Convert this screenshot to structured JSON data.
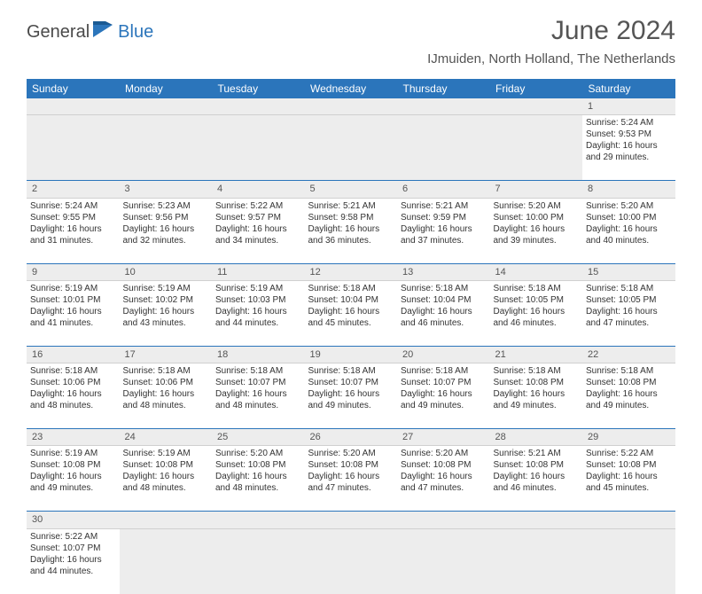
{
  "brand": {
    "part1": "General",
    "part2": "Blue"
  },
  "title": "June 2024",
  "location": "IJmuiden, North Holland, The Netherlands",
  "colors": {
    "header_bg": "#2b75bb",
    "header_text": "#ffffff",
    "daynum_bg": "#ededed",
    "border": "#2b75bb",
    "text": "#333333",
    "brand_gray": "#4a4a4a",
    "brand_blue": "#2b75bb"
  },
  "fonts": {
    "title_size": 30,
    "location_size": 15,
    "header_size": 12,
    "cell_size": 10
  },
  "day_headers": [
    "Sunday",
    "Monday",
    "Tuesday",
    "Wednesday",
    "Thursday",
    "Friday",
    "Saturday"
  ],
  "weeks": [
    [
      null,
      null,
      null,
      null,
      null,
      null,
      {
        "n": "1",
        "sr": "5:24 AM",
        "ss": "9:53 PM",
        "dl": "16 hours and 29 minutes."
      }
    ],
    [
      {
        "n": "2",
        "sr": "5:24 AM",
        "ss": "9:55 PM",
        "dl": "16 hours and 31 minutes."
      },
      {
        "n": "3",
        "sr": "5:23 AM",
        "ss": "9:56 PM",
        "dl": "16 hours and 32 minutes."
      },
      {
        "n": "4",
        "sr": "5:22 AM",
        "ss": "9:57 PM",
        "dl": "16 hours and 34 minutes."
      },
      {
        "n": "5",
        "sr": "5:21 AM",
        "ss": "9:58 PM",
        "dl": "16 hours and 36 minutes."
      },
      {
        "n": "6",
        "sr": "5:21 AM",
        "ss": "9:59 PM",
        "dl": "16 hours and 37 minutes."
      },
      {
        "n": "7",
        "sr": "5:20 AM",
        "ss": "10:00 PM",
        "dl": "16 hours and 39 minutes."
      },
      {
        "n": "8",
        "sr": "5:20 AM",
        "ss": "10:00 PM",
        "dl": "16 hours and 40 minutes."
      }
    ],
    [
      {
        "n": "9",
        "sr": "5:19 AM",
        "ss": "10:01 PM",
        "dl": "16 hours and 41 minutes."
      },
      {
        "n": "10",
        "sr": "5:19 AM",
        "ss": "10:02 PM",
        "dl": "16 hours and 43 minutes."
      },
      {
        "n": "11",
        "sr": "5:19 AM",
        "ss": "10:03 PM",
        "dl": "16 hours and 44 minutes."
      },
      {
        "n": "12",
        "sr": "5:18 AM",
        "ss": "10:04 PM",
        "dl": "16 hours and 45 minutes."
      },
      {
        "n": "13",
        "sr": "5:18 AM",
        "ss": "10:04 PM",
        "dl": "16 hours and 46 minutes."
      },
      {
        "n": "14",
        "sr": "5:18 AM",
        "ss": "10:05 PM",
        "dl": "16 hours and 46 minutes."
      },
      {
        "n": "15",
        "sr": "5:18 AM",
        "ss": "10:05 PM",
        "dl": "16 hours and 47 minutes."
      }
    ],
    [
      {
        "n": "16",
        "sr": "5:18 AM",
        "ss": "10:06 PM",
        "dl": "16 hours and 48 minutes."
      },
      {
        "n": "17",
        "sr": "5:18 AM",
        "ss": "10:06 PM",
        "dl": "16 hours and 48 minutes."
      },
      {
        "n": "18",
        "sr": "5:18 AM",
        "ss": "10:07 PM",
        "dl": "16 hours and 48 minutes."
      },
      {
        "n": "19",
        "sr": "5:18 AM",
        "ss": "10:07 PM",
        "dl": "16 hours and 49 minutes."
      },
      {
        "n": "20",
        "sr": "5:18 AM",
        "ss": "10:07 PM",
        "dl": "16 hours and 49 minutes."
      },
      {
        "n": "21",
        "sr": "5:18 AM",
        "ss": "10:08 PM",
        "dl": "16 hours and 49 minutes."
      },
      {
        "n": "22",
        "sr": "5:18 AM",
        "ss": "10:08 PM",
        "dl": "16 hours and 49 minutes."
      }
    ],
    [
      {
        "n": "23",
        "sr": "5:19 AM",
        "ss": "10:08 PM",
        "dl": "16 hours and 49 minutes."
      },
      {
        "n": "24",
        "sr": "5:19 AM",
        "ss": "10:08 PM",
        "dl": "16 hours and 48 minutes."
      },
      {
        "n": "25",
        "sr": "5:20 AM",
        "ss": "10:08 PM",
        "dl": "16 hours and 48 minutes."
      },
      {
        "n": "26",
        "sr": "5:20 AM",
        "ss": "10:08 PM",
        "dl": "16 hours and 47 minutes."
      },
      {
        "n": "27",
        "sr": "5:20 AM",
        "ss": "10:08 PM",
        "dl": "16 hours and 47 minutes."
      },
      {
        "n": "28",
        "sr": "5:21 AM",
        "ss": "10:08 PM",
        "dl": "16 hours and 46 minutes."
      },
      {
        "n": "29",
        "sr": "5:22 AM",
        "ss": "10:08 PM",
        "dl": "16 hours and 45 minutes."
      }
    ],
    [
      {
        "n": "30",
        "sr": "5:22 AM",
        "ss": "10:07 PM",
        "dl": "16 hours and 44 minutes."
      },
      null,
      null,
      null,
      null,
      null,
      null
    ]
  ],
  "labels": {
    "sunrise": "Sunrise: ",
    "sunset": "Sunset: ",
    "daylight": "Daylight: "
  }
}
